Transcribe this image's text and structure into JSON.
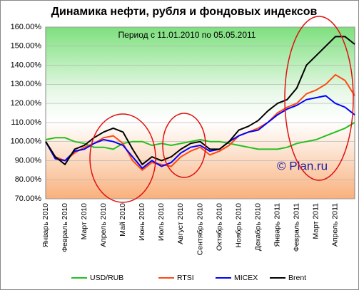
{
  "chart_data": {
    "type": "line",
    "title": "Динамика нефти, рубля и фондовых индексов",
    "subtitle": "Период  с 11.01.2010  по 05.05.2011",
    "watermark": "© Plan.ru",
    "categories": [
      "Январь 2010",
      null,
      "Февраль 2010",
      null,
      "Март 2010",
      null,
      "Апрель 2010",
      null,
      "Май 2010",
      null,
      "Июнь 2010",
      null,
      "Июль 2010",
      null,
      "Август 2010",
      null,
      "Сентябрь 2010",
      null,
      "Октябрь 2010",
      null,
      "Ноябрь 2010",
      null,
      "Декабрь 2010",
      null,
      "Январь 2011",
      null,
      "Февраль 2011",
      null,
      "Март 2011",
      null,
      "Апрель 2011",
      null,
      null
    ],
    "series": [
      {
        "name": "USD/RUB",
        "color": "#22c022",
        "values": [
          101,
          102,
          102,
          100,
          99,
          97,
          97,
          96,
          99,
          100,
          100,
          98,
          99,
          98,
          99,
          100,
          101,
          100,
          100,
          99,
          98,
          97,
          96,
          96,
          96,
          97,
          99,
          100,
          101,
          103,
          105,
          107,
          110
        ]
      },
      {
        "name": "RTSI",
        "color": "#ff4a10",
        "values": [
          100,
          92,
          90,
          94,
          97,
          99,
          102,
          103,
          99,
          90,
          85,
          89,
          88,
          87,
          92,
          95,
          97,
          93,
          95,
          98,
          103,
          105,
          107,
          110,
          115,
          118,
          120,
          125,
          127,
          130,
          135,
          132,
          124
        ]
      },
      {
        "name": "MICEX",
        "color": "#0000ff",
        "values": [
          100,
          91,
          90,
          95,
          96,
          99,
          101,
          100,
          98,
          92,
          86,
          90,
          87,
          89,
          94,
          97,
          98,
          95,
          96,
          100,
          103,
          105,
          106,
          110,
          114,
          117,
          119,
          122,
          123,
          124,
          120,
          118,
          114
        ]
      },
      {
        "name": "Brent",
        "color": "#000000",
        "values": [
          100,
          92,
          88,
          96,
          98,
          102,
          105,
          107,
          105,
          96,
          88,
          92,
          90,
          92,
          96,
          99,
          100,
          96,
          96,
          100,
          106,
          108,
          111,
          116,
          120,
          122,
          128,
          140,
          145,
          150,
          155,
          155,
          151
        ]
      }
    ],
    "ylim": [
      70,
      160
    ],
    "yticks": [
      {
        "value": 70,
        "label": "70.00%"
      },
      {
        "value": 80,
        "label": "80.00%"
      },
      {
        "value": 90,
        "label": "90.00%"
      },
      {
        "value": 100,
        "label": "100.00%"
      },
      {
        "value": 110,
        "label": "110.00%"
      },
      {
        "value": 120,
        "label": "120.00%"
      },
      {
        "value": 130,
        "label": "130.00%"
      },
      {
        "value": 140,
        "label": "140.00%"
      },
      {
        "value": 150,
        "label": "150.00%"
      },
      {
        "value": 160,
        "label": "160.00%"
      }
    ],
    "grid": true
  }
}
